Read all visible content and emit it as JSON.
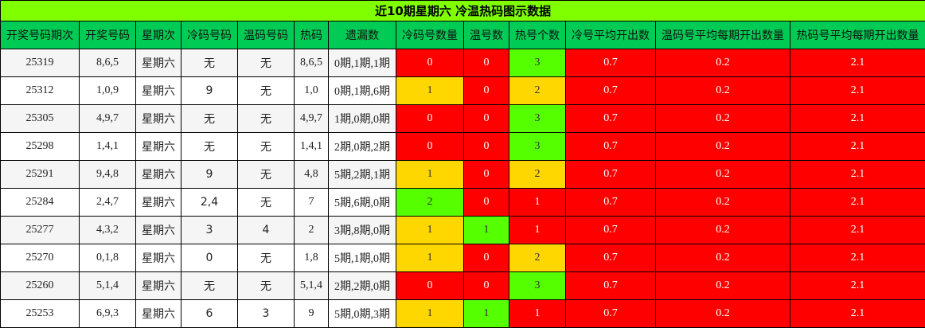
{
  "title": "近10期星期六 冷温热码图示数据",
  "colors": {
    "title_bg": "#7FFF00",
    "header_bg": "#00CC55",
    "red": "#FF0000",
    "yellow": "#FFD700",
    "green": "#55FF00"
  },
  "columns": [
    "开奖号码期次",
    "开奖号码",
    "星期次",
    "冷码号码",
    "温码号码",
    "热码",
    "遗漏数",
    "冷码号数量",
    "温号数",
    "热号个数",
    "冷号平均开出数",
    "温码号平均每期开出数量",
    "热码号平均每期开出数量"
  ],
  "rows": [
    {
      "cells": [
        "25319",
        "8,6,5",
        "星期六",
        "无",
        "无",
        "8,6,5",
        "0期,1期,1期",
        "0",
        "0",
        "3",
        "0.7",
        "0.2",
        "2.1"
      ],
      "cell_colors": [
        "red",
        "red",
        "green",
        "red",
        "red",
        "red"
      ]
    },
    {
      "cells": [
        "25312",
        "1,0,9",
        "星期六",
        "9",
        "无",
        "1,0",
        "0期,1期,6期",
        "1",
        "0",
        "2",
        "0.7",
        "0.2",
        "2.1"
      ],
      "cell_colors": [
        "yellow",
        "red",
        "yellow",
        "red",
        "red",
        "red"
      ]
    },
    {
      "cells": [
        "25305",
        "4,9,7",
        "星期六",
        "无",
        "无",
        "4,9,7",
        "1期,0期,0期",
        "0",
        "0",
        "3",
        "0.7",
        "0.2",
        "2.1"
      ],
      "cell_colors": [
        "red",
        "red",
        "green",
        "red",
        "red",
        "red"
      ]
    },
    {
      "cells": [
        "25298",
        "1,4,1",
        "星期六",
        "无",
        "无",
        "1,4,1",
        "2期,0期,2期",
        "0",
        "0",
        "3",
        "0.7",
        "0.2",
        "2.1"
      ],
      "cell_colors": [
        "red",
        "red",
        "green",
        "red",
        "red",
        "red"
      ]
    },
    {
      "cells": [
        "25291",
        "9,4,8",
        "星期六",
        "9",
        "无",
        "4,8",
        "5期,2期,1期",
        "1",
        "0",
        "2",
        "0.7",
        "0.2",
        "2.1"
      ],
      "cell_colors": [
        "yellow",
        "red",
        "yellow",
        "red",
        "red",
        "red"
      ]
    },
    {
      "cells": [
        "25284",
        "2,4,7",
        "星期六",
        "2,4",
        "无",
        "7",
        "5期,6期,0期",
        "2",
        "0",
        "1",
        "0.7",
        "0.2",
        "2.1"
      ],
      "cell_colors": [
        "green",
        "red",
        "red",
        "red",
        "red",
        "red"
      ]
    },
    {
      "cells": [
        "25277",
        "4,3,2",
        "星期六",
        "3",
        "4",
        "2",
        "3期,8期,0期",
        "1",
        "1",
        "1",
        "0.7",
        "0.2",
        "2.1"
      ],
      "cell_colors": [
        "yellow",
        "green",
        "red",
        "red",
        "red",
        "red"
      ]
    },
    {
      "cells": [
        "25270",
        "0,1,8",
        "星期六",
        "0",
        "无",
        "1,8",
        "5期,1期,0期",
        "1",
        "0",
        "2",
        "0.7",
        "0.2",
        "2.1"
      ],
      "cell_colors": [
        "yellow",
        "red",
        "yellow",
        "red",
        "red",
        "red"
      ]
    },
    {
      "cells": [
        "25260",
        "5,1,4",
        "星期六",
        "无",
        "无",
        "5,1,4",
        "2期,2期,0期",
        "0",
        "0",
        "3",
        "0.7",
        "0.2",
        "2.1"
      ],
      "cell_colors": [
        "red",
        "red",
        "green",
        "red",
        "red",
        "red"
      ]
    },
    {
      "cells": [
        "25253",
        "6,9,3",
        "星期六",
        "6",
        "3",
        "9",
        "5期,0期,3期",
        "1",
        "1",
        "1",
        "0.7",
        "0.2",
        "2.1"
      ],
      "cell_colors": [
        "yellow",
        "green",
        "red",
        "red",
        "red",
        "red"
      ]
    }
  ]
}
